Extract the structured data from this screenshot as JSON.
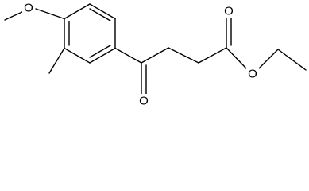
{
  "atoms": [
    {
      "label": "O"
    },
    {
      "label": "O"
    },
    {
      "label": "O"
    },
    {
      "label": "O"
    }
  ]
}
